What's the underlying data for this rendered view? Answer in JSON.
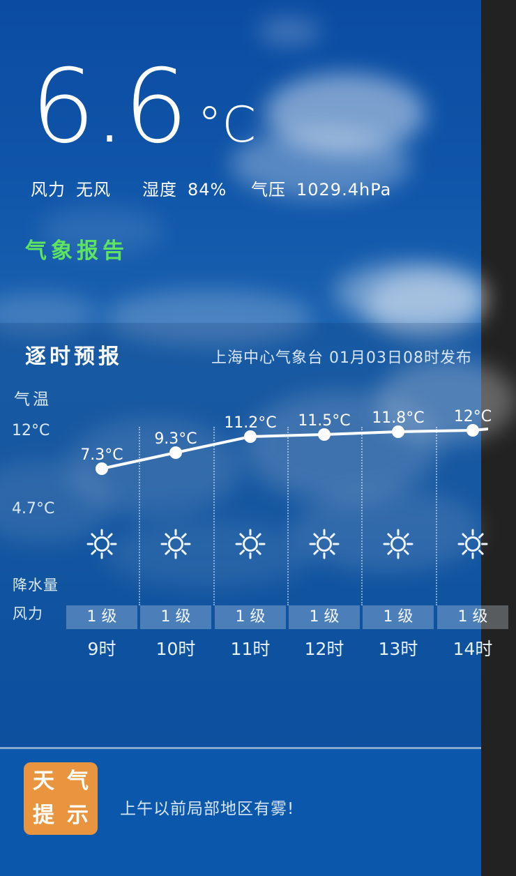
{
  "current": {
    "temperature": "6.6",
    "unit": "°C",
    "stats": [
      {
        "label": "风力",
        "value": "无风"
      },
      {
        "label": "湿度",
        "value": "84%"
      },
      {
        "label": "气压",
        "value": "1029.4hPa"
      }
    ],
    "report_link": "气象报告"
  },
  "hourly": {
    "title": "逐时预报",
    "source": "上海中心气象台 01月03日08时发布",
    "axis": {
      "temp": "气温",
      "y_max": "12°C",
      "y_min": "4.7°C",
      "precip": "降水量",
      "wind": "风力"
    },
    "columns": [
      {
        "time": "9时",
        "temp_label": "7.3°C",
        "wind": "1 级",
        "icon": "sunny"
      },
      {
        "time": "10时",
        "temp_label": "9.3°C",
        "wind": "1 级",
        "icon": "sunny"
      },
      {
        "time": "11时",
        "temp_label": "11.2°C",
        "wind": "1 级",
        "icon": "sunny"
      },
      {
        "time": "12时",
        "temp_label": "11.5°C",
        "wind": "1 级",
        "icon": "sunny"
      },
      {
        "time": "13时",
        "temp_label": "11.8°C",
        "wind": "1 级",
        "icon": "sunny"
      },
      {
        "time": "14时",
        "temp_label": "12°C",
        "wind": "1 级",
        "icon": "sunny"
      }
    ]
  },
  "chart_data": {
    "type": "line",
    "title": "逐时预报 气温",
    "x": [
      "9时",
      "10时",
      "11时",
      "12时",
      "13时",
      "14时"
    ],
    "values": [
      7.3,
      9.3,
      11.2,
      11.5,
      11.8,
      12
    ],
    "unit": "°C",
    "ylabel": "气温",
    "yticks": [
      "12°C",
      "4.7°C"
    ],
    "ylim": [
      4.7,
      12
    ],
    "point_labels": [
      "7.3°C",
      "9.3°C",
      "11.2°C",
      "11.5°C",
      "11.8°C",
      "12°C"
    ],
    "weather_icons": [
      "sunny",
      "sunny",
      "sunny",
      "sunny",
      "sunny",
      "sunny"
    ],
    "wind_levels": [
      "1 级",
      "1 级",
      "1 级",
      "1 级",
      "1 级",
      "1 级"
    ],
    "grid": "dotted-vertical",
    "legend": "none"
  },
  "tip": {
    "badge_rows": [
      "天气",
      "提示"
    ],
    "text": "上午以前局部地区有雾!"
  },
  "colors": {
    "accent_green": "#5ee45e",
    "badge_orange": "#e9953f",
    "sky_blue": "#0f59ab",
    "line_white": "#ffffff"
  }
}
